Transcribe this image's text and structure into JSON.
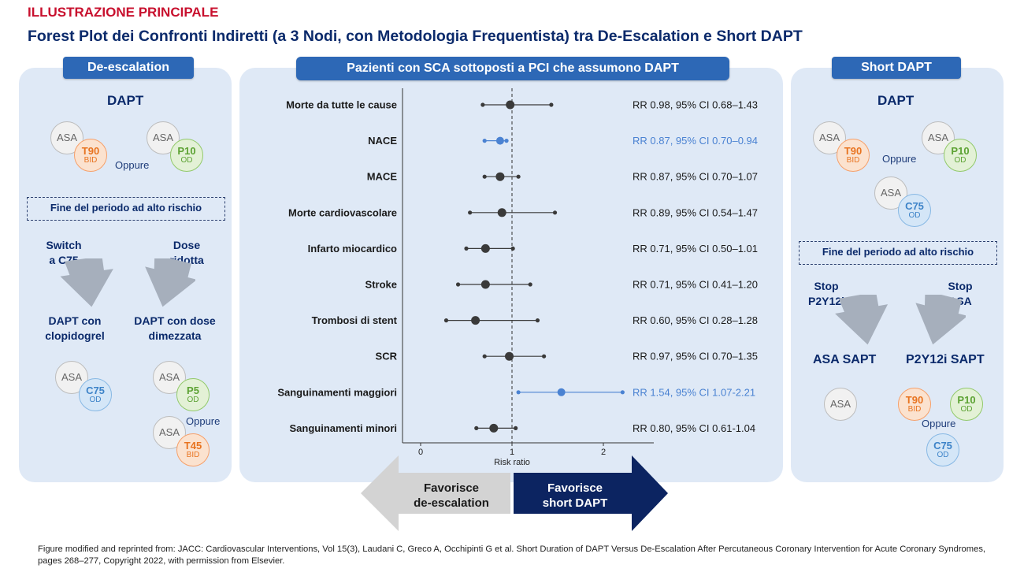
{
  "header": {
    "label": "ILLUSTRAZIONE PRINCIPALE",
    "title": "Forest Plot dei Confronti Indiretti (a 3 Nodi, con Metodologia Frequentista) tra De-Escalation e Short DAPT"
  },
  "left_panel": {
    "badge": "De-escalation",
    "dapt_label": "DAPT",
    "oppure": "Oppure",
    "high_risk_box": "Fine del periodo ad alto rischio",
    "switch_line1": "Switch",
    "switch_line2": "a C75",
    "dose_line1": "Dose",
    "dose_line2": "ridotta",
    "dapt_clopi_line1": "DAPT con",
    "dapt_clopi_line2": "clopidogrel",
    "dapt_dose_line1": "DAPT con dose",
    "dapt_dose_line2": "dimezzata",
    "oppure_bottom": "Oppure",
    "pills": {
      "asa": "ASA",
      "t90": "T90",
      "t90_sub": "BID",
      "p10": "P10",
      "p10_sub": "OD",
      "c75": "C75",
      "c75_sub": "OD",
      "p5": "P5",
      "p5_sub": "OD",
      "t45": "T45",
      "t45_sub": "BID"
    }
  },
  "center_panel": {
    "badge": "Pazienti con SCA sottoposti  a PCI che assumono  DAPT",
    "axis_label": "Risk ratio",
    "axis_ticks": [
      "0",
      "1",
      "2"
    ],
    "favor_left_line1": "Favorisce",
    "favor_left_line2": "de-escalation",
    "favor_right_line1": "Favorisce",
    "favor_right_line2": "short DAPT"
  },
  "right_panel": {
    "badge": "Short DAPT",
    "dapt_label": "DAPT",
    "oppure": "Oppure",
    "high_risk_box": "Fine del periodo ad alto rischio",
    "stop_p2y_line1": "Stop",
    "stop_p2y_line2": "P2Y12i",
    "stop_asa_line1": "Stop",
    "stop_asa_line2": "ASA",
    "asa_sapt": "ASA SAPT",
    "p2y_sapt": "P2Y12i SAPT",
    "oppure_bottom": "Oppure",
    "pills": {
      "asa": "ASA",
      "t90": "T90",
      "t90_sub": "BID",
      "p10": "P10",
      "p10_sub": "OD",
      "c75": "C75",
      "c75_sub": "OD"
    }
  },
  "colors": {
    "dark_point": "#3a3a3a",
    "blue_point": "#4a82d2",
    "navy": "#0b2a6b",
    "badge_blue": "#2d68b6",
    "panel_bg": "#dfe9f6"
  },
  "chart_data": {
    "type": "forest",
    "xlabel": "Risk ratio",
    "xlim": [
      0,
      2.5
    ],
    "xticks": [
      0,
      1,
      2
    ],
    "reference_line": 1,
    "rows": [
      {
        "label": "Morte da tutte le cause",
        "rr": 0.98,
        "lo": 0.68,
        "hi": 1.43,
        "text": "RR 0.98, 95% CI 0.68–1.43",
        "highlight": false
      },
      {
        "label": "NACE",
        "rr": 0.87,
        "lo": 0.7,
        "hi": 0.94,
        "text": "RR 0.87, 95% CI 0.70–0.94",
        "highlight": true
      },
      {
        "label": "MACE",
        "rr": 0.87,
        "lo": 0.7,
        "hi": 1.07,
        "text": "RR 0.87, 95% CI 0.70–1.07",
        "highlight": false
      },
      {
        "label": "Morte cardiovascolare",
        "rr": 0.89,
        "lo": 0.54,
        "hi": 1.47,
        "text": "RR 0.89, 95% CI 0.54–1.47",
        "highlight": false
      },
      {
        "label": "Infarto miocardico",
        "rr": 0.71,
        "lo": 0.5,
        "hi": 1.01,
        "text": "RR 0.71, 95% CI 0.50–1.01",
        "highlight": false
      },
      {
        "label": "Stroke",
        "rr": 0.71,
        "lo": 0.41,
        "hi": 1.2,
        "text": "RR 0.71, 95% CI 0.41–1.20",
        "highlight": false
      },
      {
        "label": "Trombosi di stent",
        "rr": 0.6,
        "lo": 0.28,
        "hi": 1.28,
        "text": "RR 0.60, 95% CI 0.28–1.28",
        "highlight": false
      },
      {
        "label": "SCR",
        "rr": 0.97,
        "lo": 0.7,
        "hi": 1.35,
        "text": "RR 0.97, 95% CI 0.70–1.35",
        "highlight": false
      },
      {
        "label": "Sanguinamenti maggiori",
        "rr": 1.54,
        "lo": 1.07,
        "hi": 2.21,
        "text": "RR 1.54, 95% CI 1.07-2.21",
        "highlight": true
      },
      {
        "label": "Sanguinamenti minori",
        "rr": 0.8,
        "lo": 0.61,
        "hi": 1.04,
        "text": "RR 0.80, 95% CI 0.61-1.04",
        "highlight": false
      }
    ]
  },
  "footer": {
    "text": "Figure modified and reprinted from: JACC: Cardiovascular Interventions, Vol 15(3), Laudani C, Greco A, Occhipinti G et al. Short Duration of DAPT Versus De-Escalation After Percutaneous Coronary Intervention for Acute Coronary Syndromes, pages 268–277, Copyright 2022, with permission from Elsevier."
  }
}
